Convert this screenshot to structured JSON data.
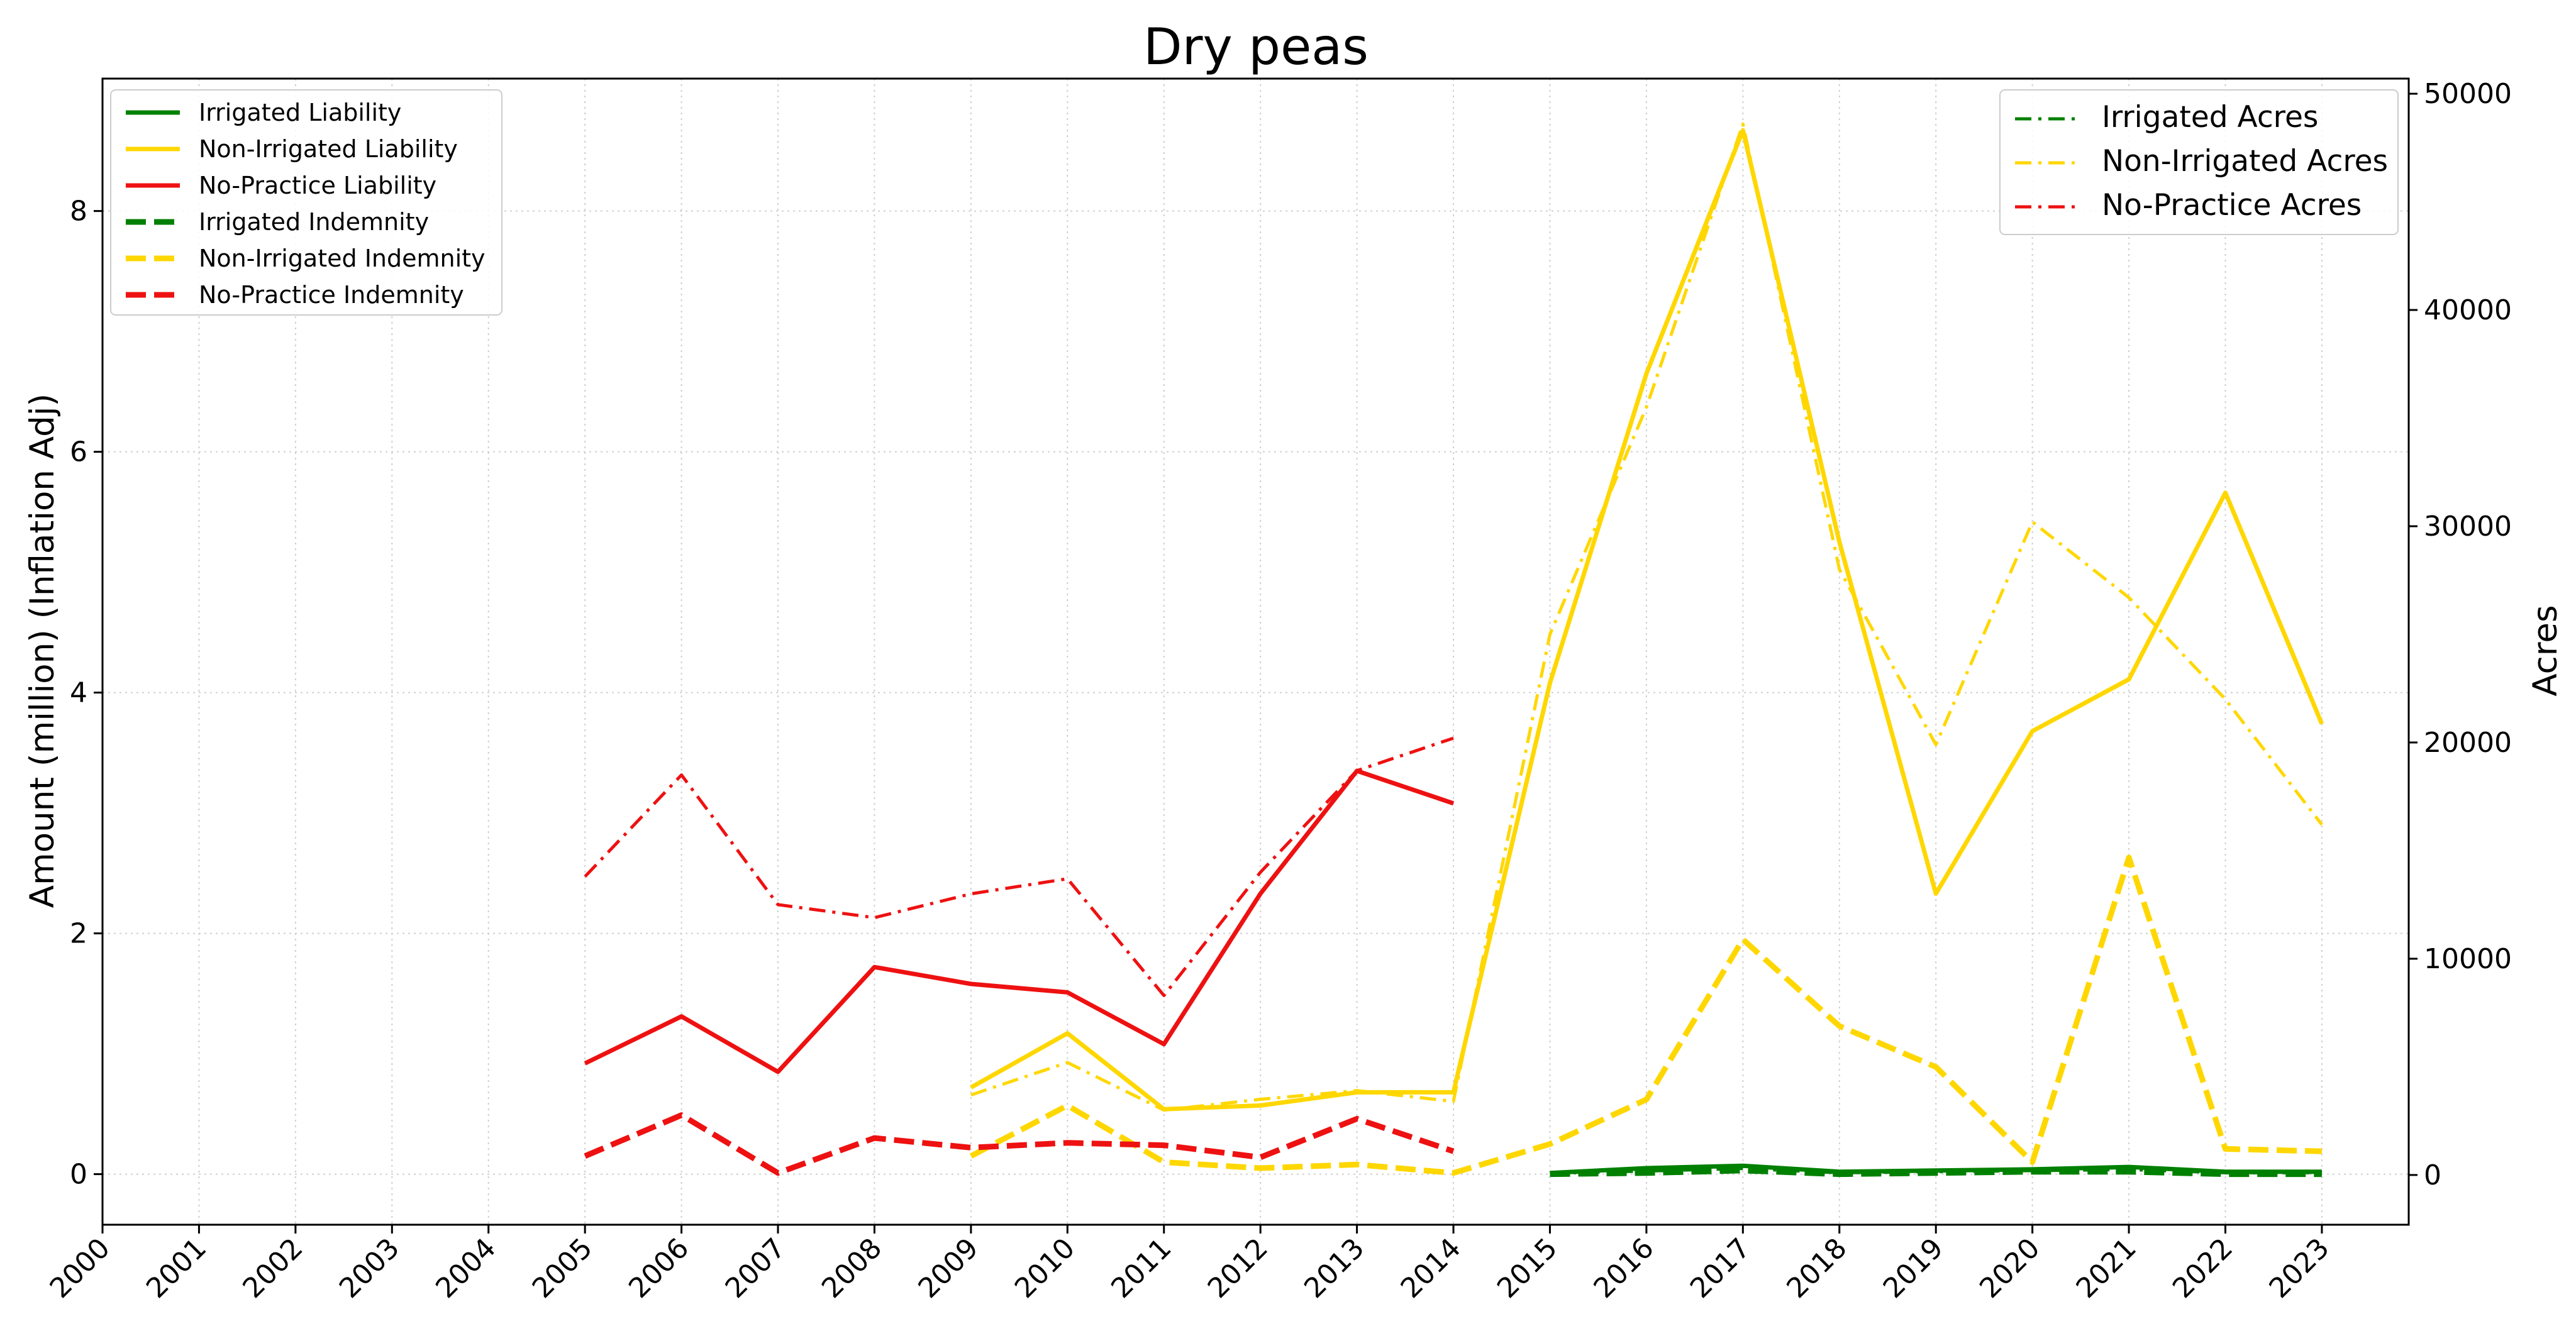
{
  "chart_data": {
    "type": "line",
    "title": "Dry peas",
    "ylabel": "Amount (million) (Inflation Adj)",
    "y2label": "Acres",
    "x": [
      "2000",
      "2001",
      "2002",
      "2003",
      "2004",
      "2005",
      "2006",
      "2007",
      "2008",
      "2009",
      "2010",
      "2011",
      "2012",
      "2013",
      "2014",
      "2015",
      "2016",
      "2017",
      "2018",
      "2019",
      "2020",
      "2021",
      "2022",
      "2023"
    ],
    "xlim": [
      2000,
      2023.9
    ],
    "ylim": [
      -0.42,
      9.1
    ],
    "y2lim": [
      -2300,
      50700
    ],
    "yticks": [
      0,
      2,
      4,
      6,
      8
    ],
    "y2ticks": [
      0,
      10000,
      20000,
      30000,
      40000,
      50000
    ],
    "grid": true,
    "legend_left_position": "top-left",
    "legend_right_position": "top-right",
    "series": [
      {
        "name": "Irrigated Liability",
        "axis": "left",
        "style": "solid",
        "color": "#008000",
        "values": [
          null,
          null,
          null,
          null,
          null,
          null,
          null,
          null,
          null,
          null,
          null,
          null,
          null,
          null,
          null,
          0.01,
          0.05,
          0.07,
          0.02,
          0.03,
          0.04,
          0.06,
          0.02,
          0.02
        ]
      },
      {
        "name": "Non-Irrigated Liability",
        "axis": "left",
        "style": "solid",
        "color": "#FFD700",
        "values": [
          null,
          null,
          null,
          null,
          null,
          null,
          null,
          null,
          null,
          0.72,
          1.17,
          0.54,
          0.57,
          0.68,
          0.68,
          4.08,
          6.65,
          8.67,
          5.25,
          2.33,
          3.68,
          4.11,
          5.66,
          3.74
        ]
      },
      {
        "name": "No-Practice Liability",
        "axis": "left",
        "style": "solid",
        "color": "#EE1111",
        "values": [
          null,
          null,
          null,
          null,
          null,
          0.92,
          1.31,
          0.85,
          1.72,
          1.58,
          1.51,
          1.08,
          2.33,
          3.35,
          3.08,
          null,
          null,
          null,
          null,
          null,
          null,
          null,
          null,
          null
        ]
      },
      {
        "name": "Irrigated Indemnity",
        "axis": "left",
        "style": "dashed",
        "color": "#008000",
        "values": [
          null,
          null,
          null,
          null,
          null,
          null,
          null,
          null,
          null,
          null,
          null,
          null,
          null,
          null,
          null,
          0.0,
          0.01,
          0.03,
          0.0,
          0.01,
          0.02,
          0.02,
          0.0,
          0.0
        ]
      },
      {
        "name": "Non-Irrigated Indemnity",
        "axis": "left",
        "style": "dashed",
        "color": "#FFD700",
        "values": [
          null,
          null,
          null,
          null,
          null,
          null,
          null,
          null,
          null,
          0.15,
          0.57,
          0.1,
          0.05,
          0.08,
          0.01,
          0.25,
          0.62,
          1.95,
          1.23,
          0.89,
          0.1,
          2.63,
          0.21,
          0.19
        ]
      },
      {
        "name": "No-Practice Indemnity",
        "axis": "left",
        "style": "dashed",
        "color": "#EE1111",
        "values": [
          null,
          null,
          null,
          null,
          null,
          0.15,
          0.49,
          0.01,
          0.3,
          0.22,
          0.26,
          0.24,
          0.14,
          0.46,
          0.19,
          null,
          null,
          null,
          null,
          null,
          null,
          null,
          null,
          null
        ]
      },
      {
        "name": "Irrigated Acres",
        "axis": "right",
        "style": "dashdot",
        "color": "#008000",
        "values": [
          null,
          null,
          null,
          null,
          null,
          null,
          null,
          null,
          null,
          null,
          null,
          null,
          null,
          null,
          null,
          80,
          180,
          300,
          100,
          150,
          200,
          250,
          100,
          100
        ]
      },
      {
        "name": "Non-Irrigated Acres",
        "axis": "right",
        "style": "dashdot",
        "color": "#FFD700",
        "values": [
          null,
          null,
          null,
          null,
          null,
          null,
          null,
          null,
          null,
          3700,
          5200,
          3000,
          3500,
          3900,
          3400,
          25000,
          35500,
          48600,
          28000,
          19900,
          30200,
          26700,
          22000,
          16200
        ]
      },
      {
        "name": "No-Practice Acres",
        "axis": "right",
        "style": "dashdot",
        "color": "#EE1111",
        "values": [
          null,
          null,
          null,
          null,
          null,
          13800,
          18500,
          12500,
          11900,
          13000,
          13700,
          8300,
          14000,
          18700,
          20200,
          null,
          null,
          null,
          null,
          null,
          null,
          null,
          null,
          null
        ]
      }
    ]
  }
}
